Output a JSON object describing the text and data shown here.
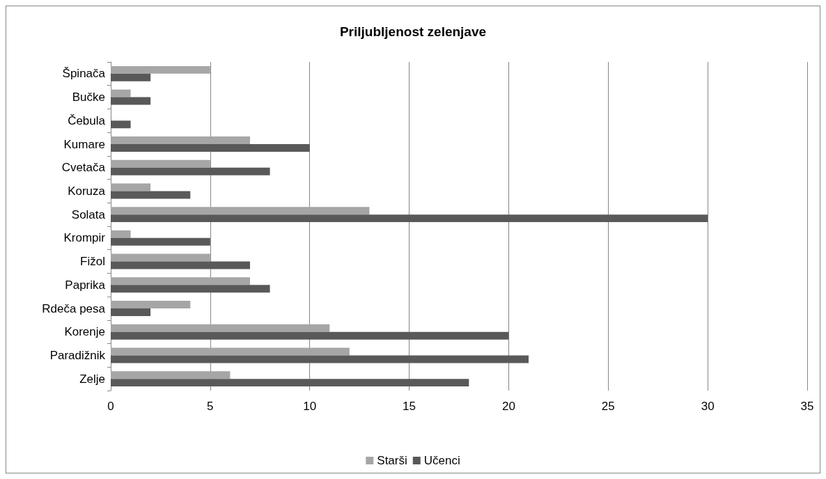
{
  "chart_data": {
    "type": "bar",
    "orientation": "horizontal",
    "title": "Priljubljenost zelenjave",
    "categories": [
      "Špinača",
      "Bučke",
      "Čebula",
      "Kumare",
      "Cvetača",
      "Koruza",
      "Solata",
      "Krompir",
      "Fižol",
      "Paprika",
      "Rdeča pesa",
      "Korenje",
      "Paradižnik",
      "Zelje"
    ],
    "series": [
      {
        "name": "Starši",
        "color": "#a6a6a6",
        "values": [
          5,
          1,
          0,
          7,
          5,
          2,
          13,
          1,
          5,
          7,
          4,
          11,
          12,
          6
        ]
      },
      {
        "name": "Učenci",
        "color": "#595959",
        "values": [
          2,
          2,
          1,
          10,
          8,
          4,
          30,
          5,
          7,
          8,
          2,
          20,
          21,
          18
        ]
      }
    ],
    "xlim": [
      0,
      35
    ],
    "xticks": [
      0,
      5,
      10,
      15,
      20,
      25,
      30,
      35
    ],
    "grid": "x",
    "legend": "bottom"
  }
}
